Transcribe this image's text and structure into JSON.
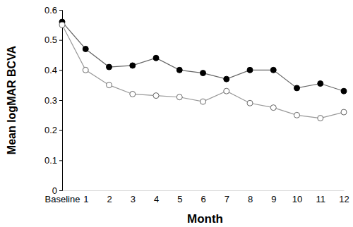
{
  "chart_data": {
    "type": "line",
    "x_label": "Month",
    "y_label": "Mean logMAR BCVA",
    "categories": [
      "Baseline",
      "1",
      "2",
      "3",
      "4",
      "5",
      "6",
      "7",
      "8",
      "9",
      "10",
      "11",
      "12"
    ],
    "series": [
      {
        "color": "#000000",
        "marker": "filled-circle",
        "line_style": "solid",
        "values": [
          0.56,
          0.47,
          0.41,
          0.415,
          0.44,
          0.4,
          0.39,
          0.37,
          0.4,
          0.4,
          0.34,
          0.355,
          0.33
        ]
      },
      {
        "color": "#666666",
        "marker": "open-circle",
        "line_style": "solid",
        "values": [
          0.55,
          0.4,
          0.35,
          0.32,
          0.315,
          0.31,
          0.295,
          0.33,
          0.29,
          0.275,
          0.25,
          0.24,
          0.26
        ]
      }
    ],
    "ylim": [
      0,
      0.6
    ],
    "yticks": [
      0,
      0.1,
      0.2,
      0.3,
      0.4,
      0.5,
      0.6
    ],
    "grid": false
  }
}
